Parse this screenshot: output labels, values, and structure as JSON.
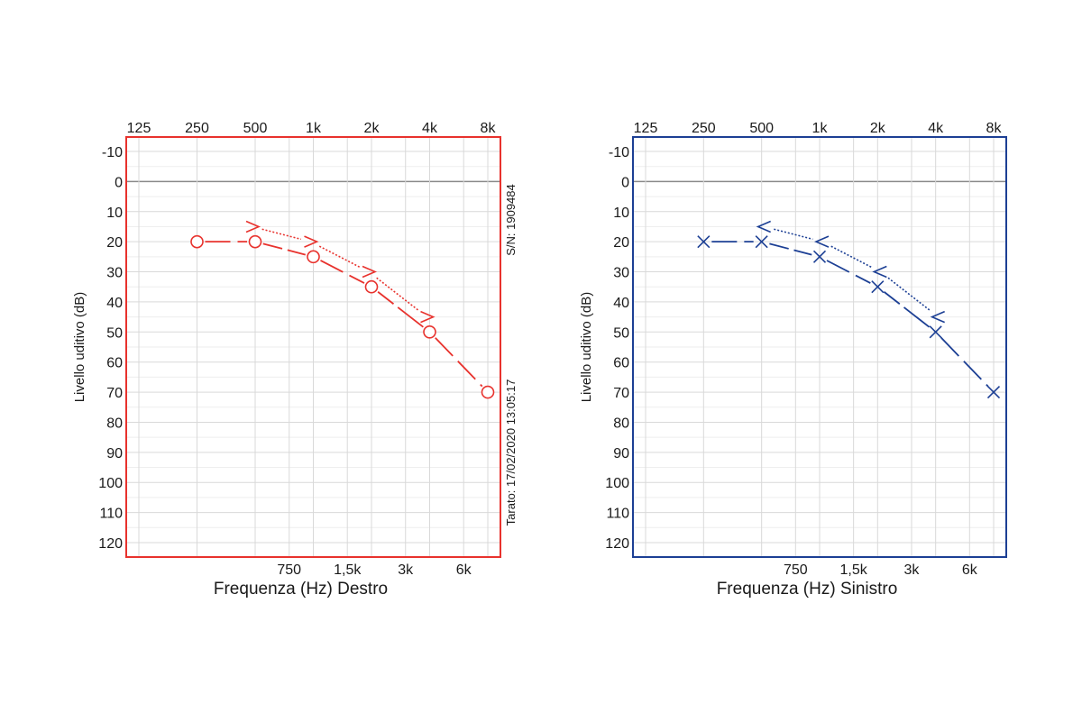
{
  "chart_data": [
    {
      "type": "line",
      "ear": "right",
      "color": "#e8322d",
      "title": "",
      "xlabel": "Frequenza (Hz) Destro",
      "ylabel": "Livello uditivo (dB)",
      "x_scale": "log2",
      "x_top_ticks": [
        125,
        250,
        500,
        1000,
        2000,
        4000,
        8000
      ],
      "x_top_tick_labels": [
        "125",
        "250",
        "500",
        "1k",
        "2k",
        "4k",
        "8k"
      ],
      "x_bottom_ticks": [
        750,
        1500,
        3000,
        6000
      ],
      "x_bottom_tick_labels": [
        "750",
        "1,5k",
        "3k",
        "6k"
      ],
      "y_ticks": [
        -10,
        0,
        10,
        20,
        30,
        40,
        50,
        60,
        70,
        80,
        90,
        100,
        110,
        120
      ],
      "y_tick_labels": [
        "-10",
        "0",
        "10",
        "20",
        "30",
        "40",
        "50",
        "60",
        "70",
        "80",
        "90",
        "100",
        "110",
        "120"
      ],
      "ylim": [
        -10,
        120
      ],
      "y_inverted": true,
      "grid": true,
      "side_texts": [
        "S/N: 1909484",
        "Tarato: 17/02/2020 13:05:17"
      ],
      "series": [
        {
          "symbol": "circle",
          "line": "dashed",
          "x": [
            250,
            500,
            1000,
            2000,
            4000,
            8000
          ],
          "y": [
            20,
            20,
            25,
            35,
            50,
            70
          ]
        },
        {
          "symbol": "greater-than",
          "line": "dotted",
          "x": [
            500,
            1000,
            2000,
            4000
          ],
          "y": [
            15,
            20,
            30,
            45
          ]
        }
      ]
    },
    {
      "type": "line",
      "ear": "left",
      "color": "#1c3f94",
      "title": "",
      "xlabel": "Frequenza (Hz) Sinistro",
      "ylabel": "Livello uditivo (dB)",
      "x_scale": "log2",
      "x_top_ticks": [
        125,
        250,
        500,
        1000,
        2000,
        4000,
        8000
      ],
      "x_top_tick_labels": [
        "125",
        "250",
        "500",
        "1k",
        "2k",
        "4k",
        "8k"
      ],
      "x_bottom_ticks": [
        750,
        1500,
        3000,
        6000
      ],
      "x_bottom_tick_labels": [
        "750",
        "1,5k",
        "3k",
        "6k"
      ],
      "y_ticks": [
        -10,
        0,
        10,
        20,
        30,
        40,
        50,
        60,
        70,
        80,
        90,
        100,
        110,
        120
      ],
      "y_tick_labels": [
        "-10",
        "0",
        "10",
        "20",
        "30",
        "40",
        "50",
        "60",
        "70",
        "80",
        "90",
        "100",
        "110",
        "120"
      ],
      "ylim": [
        -10,
        120
      ],
      "y_inverted": true,
      "grid": true,
      "side_texts": [],
      "series": [
        {
          "symbol": "cross",
          "line": "dashed",
          "x": [
            250,
            500,
            1000,
            2000,
            4000,
            8000
          ],
          "y": [
            20,
            20,
            25,
            35,
            50,
            70
          ]
        },
        {
          "symbol": "less-than",
          "line": "dotted",
          "x": [
            500,
            1000,
            2000,
            4000
          ],
          "y": [
            15,
            20,
            30,
            45
          ]
        }
      ]
    }
  ]
}
